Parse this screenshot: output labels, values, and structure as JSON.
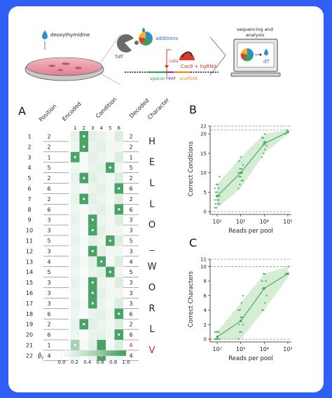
{
  "colors": {
    "frame_blue": "#2f5ff5",
    "heat_green": "#3c9a5a",
    "line_green": "#4aaa62",
    "band_green": "#d6edd5",
    "red_mismatch": "#d62020",
    "dashed_gray": "#8a8a8a"
  },
  "schematic": {
    "deoxythymidine_label": "deoxythymidine",
    "tdt_label": "TdT",
    "additions_label": "additions",
    "cuts_label": "cuts",
    "cas9_label": "Cas9 + hgRNA",
    "spacer_label": "spacer",
    "pam_label": "PAM",
    "scaffold_label": "scaffold",
    "sequencing_label_line1": "sequencing and",
    "sequencing_label_line2": "analysis",
    "dt_label": "dT",
    "icons": [
      "droplet-icon",
      "petri-dish-icon",
      "tdt-enzyme-icon",
      "cas9-enzyme-icon",
      "computer-icon",
      "pie-chart-icon",
      "arrow-icon"
    ]
  },
  "panel_a": {
    "letter": "A",
    "col_position": "Position",
    "col_encoded": "Encoded",
    "col_condition": "Condition",
    "col_decoded": "Decoded",
    "col_character": "Character",
    "condition_numbers": [
      "1",
      "2",
      "3",
      "4",
      "5",
      "6"
    ],
    "rows": [
      {
        "position": "1",
        "encoded": "2",
        "decoded": "2",
        "character": "H",
        "mismatch": false
      },
      {
        "position": "2",
        "encoded": "2",
        "decoded": "2",
        "character": "",
        "mismatch": false
      },
      {
        "position": "3",
        "encoded": "1",
        "decoded": "1",
        "character": "E",
        "mismatch": false
      },
      {
        "position": "4",
        "encoded": "5",
        "decoded": "5",
        "character": "",
        "mismatch": false
      },
      {
        "position": "5",
        "encoded": "2",
        "decoded": "2",
        "character": "L",
        "mismatch": false
      },
      {
        "position": "6",
        "encoded": "6",
        "decoded": "6",
        "character": "",
        "mismatch": false
      },
      {
        "position": "7",
        "encoded": "2",
        "decoded": "2",
        "character": "L",
        "mismatch": false
      },
      {
        "position": "8",
        "encoded": "6",
        "decoded": "6",
        "character": "",
        "mismatch": false
      },
      {
        "position": "9",
        "encoded": "3",
        "decoded": "3",
        "character": "O",
        "mismatch": false
      },
      {
        "position": "10",
        "encoded": "3",
        "decoded": "3",
        "character": "",
        "mismatch": false
      },
      {
        "position": "11",
        "encoded": "5",
        "decoded": "5",
        "character": "_",
        "mismatch": false
      },
      {
        "position": "12",
        "encoded": "3",
        "decoded": "3",
        "character": "",
        "mismatch": false
      },
      {
        "position": "13",
        "encoded": "4",
        "decoded": "4",
        "character": "W",
        "mismatch": false
      },
      {
        "position": "14",
        "encoded": "5",
        "decoded": "5",
        "character": "",
        "mismatch": false
      },
      {
        "position": "15",
        "encoded": "3",
        "decoded": "3",
        "character": "O",
        "mismatch": false
      },
      {
        "position": "16",
        "encoded": "3",
        "decoded": "3",
        "character": "",
        "mismatch": false
      },
      {
        "position": "17",
        "encoded": "3",
        "decoded": "3",
        "character": "R",
        "mismatch": false
      },
      {
        "position": "18",
        "encoded": "6",
        "decoded": "6",
        "character": "",
        "mismatch": false
      },
      {
        "position": "19",
        "encoded": "2",
        "decoded": "2",
        "character": "L",
        "mismatch": false
      },
      {
        "position": "20",
        "encoded": "6",
        "decoded": "6",
        "character": "",
        "mismatch": false
      },
      {
        "position": "21",
        "encoded": "1",
        "decoded": "4",
        "character": "V",
        "mismatch": true
      },
      {
        "position": "22",
        "encoded": "4",
        "decoded": "4",
        "character": "",
        "mismatch": false
      }
    ],
    "colorbar_label": "p̂",
    "colorbar_subscript": "r",
    "colorbar_ticks": [
      "0.0",
      "0.2",
      "0.4",
      "0.6",
      "0.8",
      "1.0"
    ]
  },
  "chart_data": [
    {
      "type": "scatter",
      "panel_letter": "B",
      "xlabel": "Reads per pool",
      "ylabel": "Correct Conditions",
      "x_scale": "log",
      "x_ticks": [
        100,
        1000,
        10000,
        100000
      ],
      "x_tick_labels": [
        "10²",
        "10³",
        "10⁴",
        "10⁵"
      ],
      "y_ticks": [
        0,
        5,
        10,
        15,
        20,
        22
      ],
      "y_tick_labels": [
        "0",
        "5",
        "10",
        "15",
        "20",
        "22"
      ],
      "ylim": [
        0,
        22
      ],
      "reference_lines": [
        {
          "y": 22,
          "style": "dashed",
          "color": "gray"
        },
        {
          "y": 21,
          "style": "dashed",
          "color": "green"
        },
        {
          "y": 0,
          "style": "dashed",
          "color": "gray"
        }
      ],
      "mean_line": {
        "x": [
          100,
          1000,
          10000,
          100000
        ],
        "y": [
          4,
          10,
          17.5,
          20.5
        ]
      },
      "band": {
        "x": [
          100,
          1000,
          10000,
          100000
        ],
        "lower": [
          1,
          6,
          15,
          20
        ],
        "upper": [
          7,
          14,
          20,
          21
        ]
      },
      "points": {
        "x100": [
          1,
          1,
          2,
          2,
          2,
          3,
          3,
          3,
          4,
          4,
          4,
          5,
          5,
          6,
          6,
          7,
          7,
          9
        ],
        "x1000": [
          6,
          7,
          8,
          8,
          9,
          9,
          10,
          10,
          11,
          11,
          12,
          13,
          14
        ],
        "x10000": [
          14,
          15,
          16,
          17,
          17,
          18,
          18,
          19,
          19,
          20
        ],
        "x100000": [
          20,
          21
        ]
      }
    },
    {
      "type": "scatter",
      "panel_letter": "C",
      "xlabel": "Reads per pool",
      "ylabel": "Correct Characters",
      "x_scale": "log",
      "x_ticks": [
        100,
        1000,
        10000,
        100000
      ],
      "x_tick_labels": [
        "10²",
        "10³",
        "10⁴",
        "10⁵"
      ],
      "y_ticks": [
        0,
        2,
        4,
        6,
        8,
        10,
        11
      ],
      "y_tick_labels": [
        "0",
        "2",
        "4",
        "6",
        "8",
        "10",
        "11"
      ],
      "ylim": [
        0,
        11
      ],
      "reference_lines": [
        {
          "y": 11,
          "style": "dashed",
          "color": "gray"
        },
        {
          "y": 10,
          "style": "dashed",
          "color": "green"
        },
        {
          "y": 0,
          "style": "dashed",
          "color": "gray"
        }
      ],
      "mean_line": {
        "x": [
          100,
          1000,
          10000,
          100000
        ],
        "y": [
          0.3,
          2.5,
          7,
          9
        ]
      },
      "band": {
        "x": [
          100,
          1000,
          10000,
          100000
        ],
        "lower": [
          0,
          0,
          4,
          8.5
        ],
        "upper": [
          1,
          5,
          9,
          10
        ]
      },
      "points": {
        "x100": [
          0,
          0,
          0,
          0,
          0,
          0,
          1,
          1,
          1,
          1
        ],
        "x1000": [
          0,
          1,
          1,
          2,
          2,
          3,
          3,
          4,
          4,
          5,
          6
        ],
        "x10000": [
          4,
          4,
          5,
          6,
          7,
          7,
          8,
          8,
          9,
          9
        ],
        "x100000": [
          9,
          9,
          10
        ]
      }
    }
  ]
}
